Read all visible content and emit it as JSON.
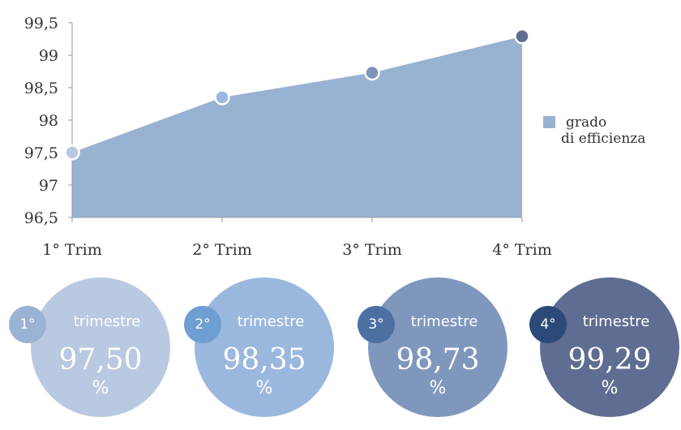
{
  "chart_data": {
    "type": "area",
    "categories": [
      "1° Trim",
      "2° Trim",
      "3° Trim",
      "4° Trim"
    ],
    "series": [
      {
        "name": "grado\ndi efficienza",
        "values": [
          97.5,
          98.35,
          98.73,
          99.29
        ]
      }
    ],
    "ylim": [
      96.5,
      99.5
    ],
    "yticks": [
      "96,5",
      "97",
      "97,5",
      "98",
      "98,5",
      "99",
      "99,5"
    ],
    "ytick_values": [
      96.5,
      97,
      97.5,
      98,
      98.5,
      99,
      99.5
    ],
    "legend_position": "right",
    "grid": false
  },
  "colors": {
    "area_fill": "#98b2d2",
    "axis": "#9a9a9a",
    "point_colors": [
      "#b9c9e1",
      "#9ab8de",
      "#7f94bb",
      "#5d6d93"
    ],
    "point_stroke": "#ffffff",
    "circle_colors": [
      "#b9c9e1",
      "#9ab8de",
      "#8097bd",
      "#5e6d91"
    ],
    "badge_colors": [
      "#9ab2d4",
      "#6f9fd2",
      "#4c70a2",
      "#2b4a78"
    ]
  },
  "legend": {
    "line1": "grado",
    "line2": "di efficienza"
  },
  "quarters": [
    {
      "badge": "1°",
      "word": "trimestre",
      "value": "97,50",
      "unit": "%"
    },
    {
      "badge": "2°",
      "word": "trimestre",
      "value": "98,35",
      "unit": "%"
    },
    {
      "badge": "3°",
      "word": "trimestre",
      "value": "98,73",
      "unit": "%"
    },
    {
      "badge": "4°",
      "word": "trimestre",
      "value": "99,29",
      "unit": "%"
    }
  ]
}
